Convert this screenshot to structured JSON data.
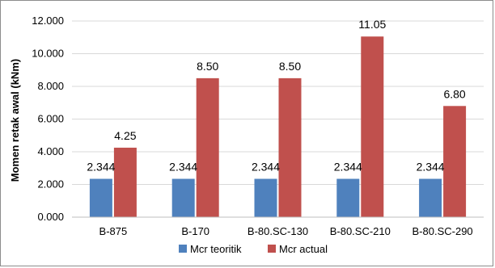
{
  "chart_data": {
    "type": "bar",
    "title": "",
    "xlabel": "",
    "ylabel": "Momen retak awal (kNm)",
    "ylim": [
      0,
      12
    ],
    "yticks": [
      "0.000",
      "2.000",
      "4.000",
      "6.000",
      "8.000",
      "10.000",
      "12.000"
    ],
    "categories": [
      "B-875",
      "B-170",
      "B-80.SC-130",
      "B-80.SC-210",
      "B-80.SC-290"
    ],
    "grid": true,
    "legend_position": "bottom",
    "series": [
      {
        "name": "Mcr teoritik",
        "color": "#4f81bd",
        "values": [
          2.344,
          2.344,
          2.344,
          2.344,
          2.344
        ],
        "labels": [
          "2.344",
          "2.344",
          "2.344",
          "2.344",
          "2.344"
        ]
      },
      {
        "name": "Mcr actual",
        "color": "#c0504d",
        "values": [
          4.25,
          8.5,
          8.5,
          11.05,
          6.8
        ],
        "labels": [
          "4.25",
          "8.50",
          "8.50",
          "11.05",
          "6.80"
        ]
      }
    ]
  }
}
